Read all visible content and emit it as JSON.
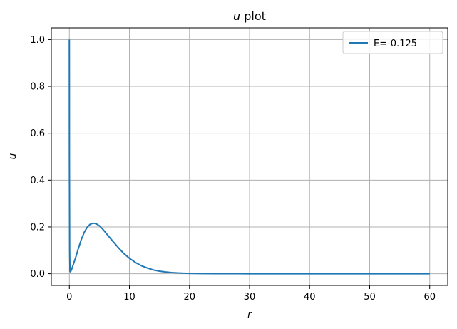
{
  "chart_data": {
    "type": "line",
    "title": {
      "variable": "u",
      "text": " plot"
    },
    "xlabel": "r",
    "ylabel": "u",
    "xlim": [
      -3,
      63
    ],
    "ylim": [
      -0.05,
      1.05
    ],
    "x_ticks": [
      0,
      10,
      20,
      30,
      40,
      50,
      60
    ],
    "y_ticks": [
      0.0,
      0.2,
      0.4,
      0.6,
      0.8,
      1.0
    ],
    "x_tick_labels": [
      "0",
      "10",
      "20",
      "30",
      "40",
      "50",
      "60"
    ],
    "y_tick_labels": [
      "0.0",
      "0.2",
      "0.4",
      "0.6",
      "0.8",
      "1.0"
    ],
    "grid": true,
    "legend_position": "top-right",
    "series": [
      {
        "name": "E=-0.125",
        "color": "#1f77b4",
        "x": [
          0,
          0.01,
          0.05,
          0.1,
          0.2,
          0.4,
          0.6,
          0.8,
          1,
          1.5,
          2,
          2.5,
          3,
          3.5,
          4,
          4.5,
          5,
          5.5,
          6,
          7,
          8,
          9,
          10,
          11,
          12,
          13,
          14,
          15,
          16,
          17,
          18,
          19,
          20,
          22,
          24,
          26,
          28,
          30,
          35,
          40,
          45,
          50,
          55,
          60
        ],
        "y": [
          1.0,
          0.5,
          0.1,
          0.01,
          0.008,
          0.02,
          0.035,
          0.05,
          0.065,
          0.108,
          0.147,
          0.178,
          0.2,
          0.212,
          0.216,
          0.213,
          0.205,
          0.192,
          0.177,
          0.146,
          0.116,
          0.088,
          0.066,
          0.048,
          0.034,
          0.024,
          0.016,
          0.011,
          0.0075,
          0.005,
          0.0033,
          0.0022,
          0.0015,
          0.0007,
          0.0003,
          0.00015,
          0.0001,
          0.0,
          0.0,
          0.0,
          0.0,
          0.0,
          0.0,
          0.0
        ]
      }
    ]
  }
}
